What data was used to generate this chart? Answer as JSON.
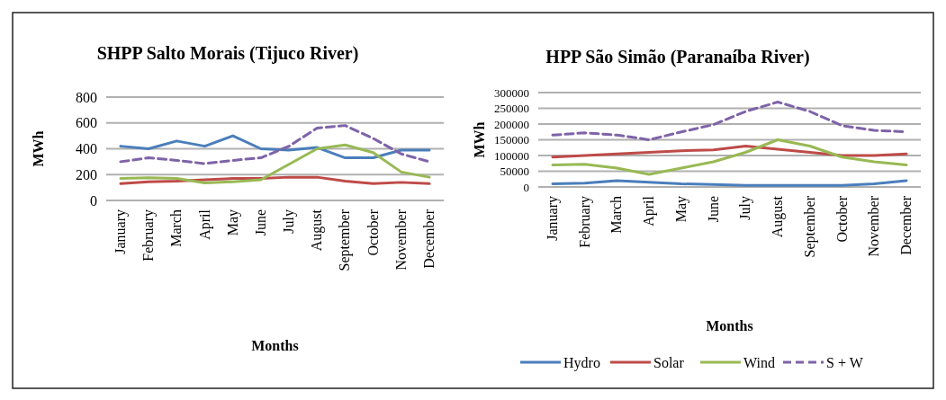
{
  "chart_data": [
    {
      "type": "line",
      "title": "SHPP Salto Morais (Tijuco River)",
      "xlabel": "Months",
      "ylabel": "MWh",
      "categories": [
        "January",
        "February",
        "March",
        "April",
        "May",
        "June",
        "July",
        "August",
        "September",
        "October",
        "November",
        "December"
      ],
      "series": [
        {
          "color": "#4a7ebb",
          "line_style": "solid",
          "values": [
            420,
            400,
            460,
            420,
            500,
            400,
            390,
            410,
            330,
            330,
            390,
            390
          ]
        },
        {
          "color": "#be4b48",
          "line_style": "solid",
          "values": [
            130,
            145,
            150,
            160,
            170,
            170,
            180,
            180,
            150,
            130,
            140,
            130
          ]
        },
        {
          "color": "#98b954",
          "line_style": "solid",
          "values": [
            170,
            175,
            170,
            135,
            145,
            160,
            280,
            400,
            430,
            370,
            220,
            180
          ]
        },
        {
          "color": "#7e63a8",
          "line_style": "dashed",
          "values": [
            300,
            330,
            310,
            285,
            310,
            330,
            420,
            560,
            580,
            480,
            360,
            300
          ]
        }
      ],
      "ylim": [
        0,
        800
      ],
      "yticks": [
        0,
        200,
        400,
        600,
        800
      ],
      "grid": "y",
      "legend": false
    },
    {
      "type": "line",
      "title": "HPP São Simão (Paranaíba River)",
      "xlabel": "Months",
      "ylabel": "MWh",
      "categories": [
        "January",
        "February",
        "March",
        "April",
        "May",
        "June",
        "July",
        "August",
        "September",
        "October",
        "November",
        "December"
      ],
      "series": [
        {
          "name": "Hydro",
          "color": "#4a7ebb",
          "line_style": "solid",
          "values": [
            10000,
            12000,
            20000,
            15000,
            10000,
            8000,
            5000,
            5000,
            5000,
            5000,
            10000,
            20000
          ]
        },
        {
          "name": "Solar",
          "color": "#be4b48",
          "line_style": "solid",
          "values": [
            95000,
            100000,
            105000,
            110000,
            115000,
            118000,
            130000,
            120000,
            110000,
            100000,
            100000,
            105000
          ]
        },
        {
          "name": "Wind",
          "color": "#98b954",
          "line_style": "solid",
          "values": [
            70000,
            72000,
            60000,
            40000,
            60000,
            80000,
            110000,
            150000,
            130000,
            95000,
            80000,
            70000
          ]
        },
        {
          "name": "S + W",
          "color": "#7e63a8",
          "line_style": "dashed",
          "values": [
            165000,
            172000,
            165000,
            150000,
            175000,
            198000,
            240000,
            270000,
            240000,
            195000,
            180000,
            175000
          ]
        }
      ],
      "ylim": [
        0,
        300000
      ],
      "yticks": [
        0,
        50000,
        100000,
        150000,
        200000,
        250000,
        300000
      ],
      "grid": "y",
      "legend": "bottom"
    }
  ]
}
